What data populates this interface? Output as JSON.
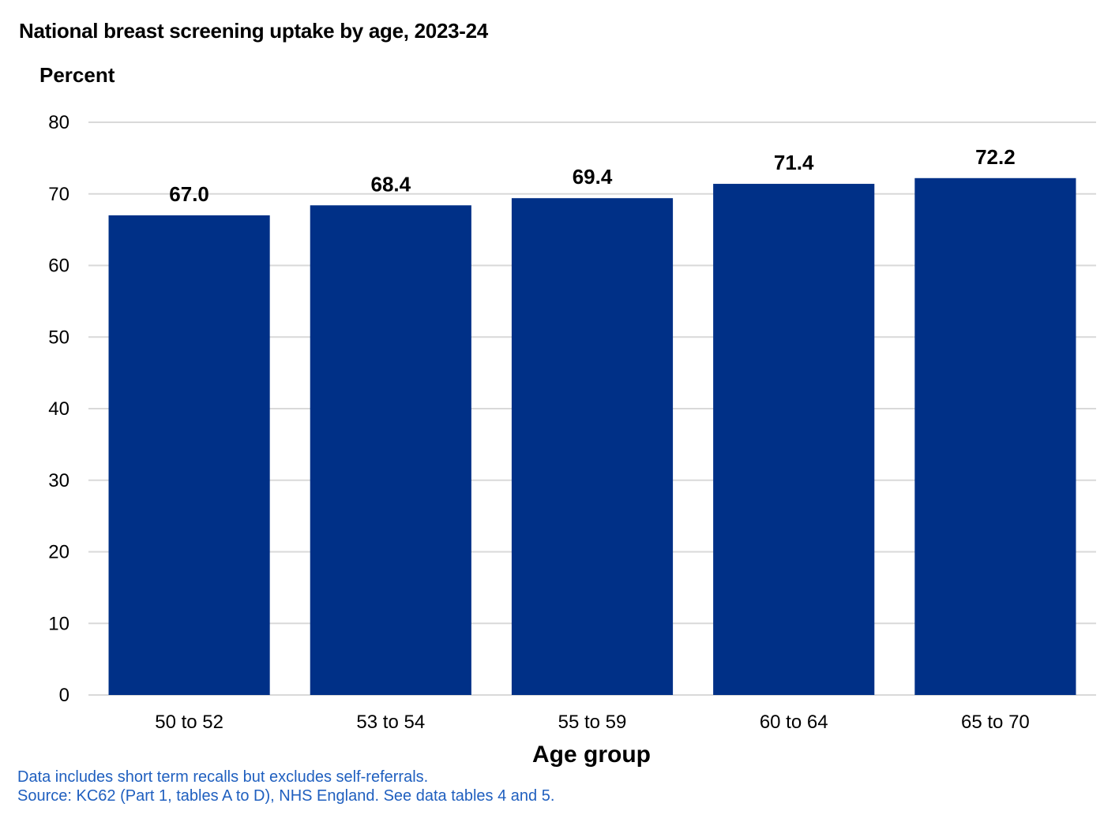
{
  "chart_data": {
    "type": "bar",
    "title": "National breast screening uptake by age, 2023-24",
    "ylabel": "Percent",
    "xlabel": "Age group",
    "categories": [
      "50 to 52",
      "53 to 54",
      "55 to 59",
      "60 to 64",
      "65 to 70"
    ],
    "values": [
      67.0,
      68.4,
      69.4,
      71.4,
      72.2
    ],
    "data_labels": [
      "67.0",
      "68.4",
      "69.4",
      "71.4",
      "72.2"
    ],
    "ylim": [
      0,
      80
    ],
    "yticks": [
      0,
      10,
      20,
      30,
      40,
      50,
      60,
      70,
      80
    ],
    "grid": true,
    "legend": "none",
    "bar_color": "#003087"
  },
  "notes": {
    "line1": "Data includes short term recalls but excludes self-referrals.",
    "line2": "Source: KC62 (Part 1, tables A to D), NHS England. See data tables 4 and 5."
  },
  "colors": {
    "note_text": "#1f5fbf",
    "gridline": "#d9d9d9"
  }
}
